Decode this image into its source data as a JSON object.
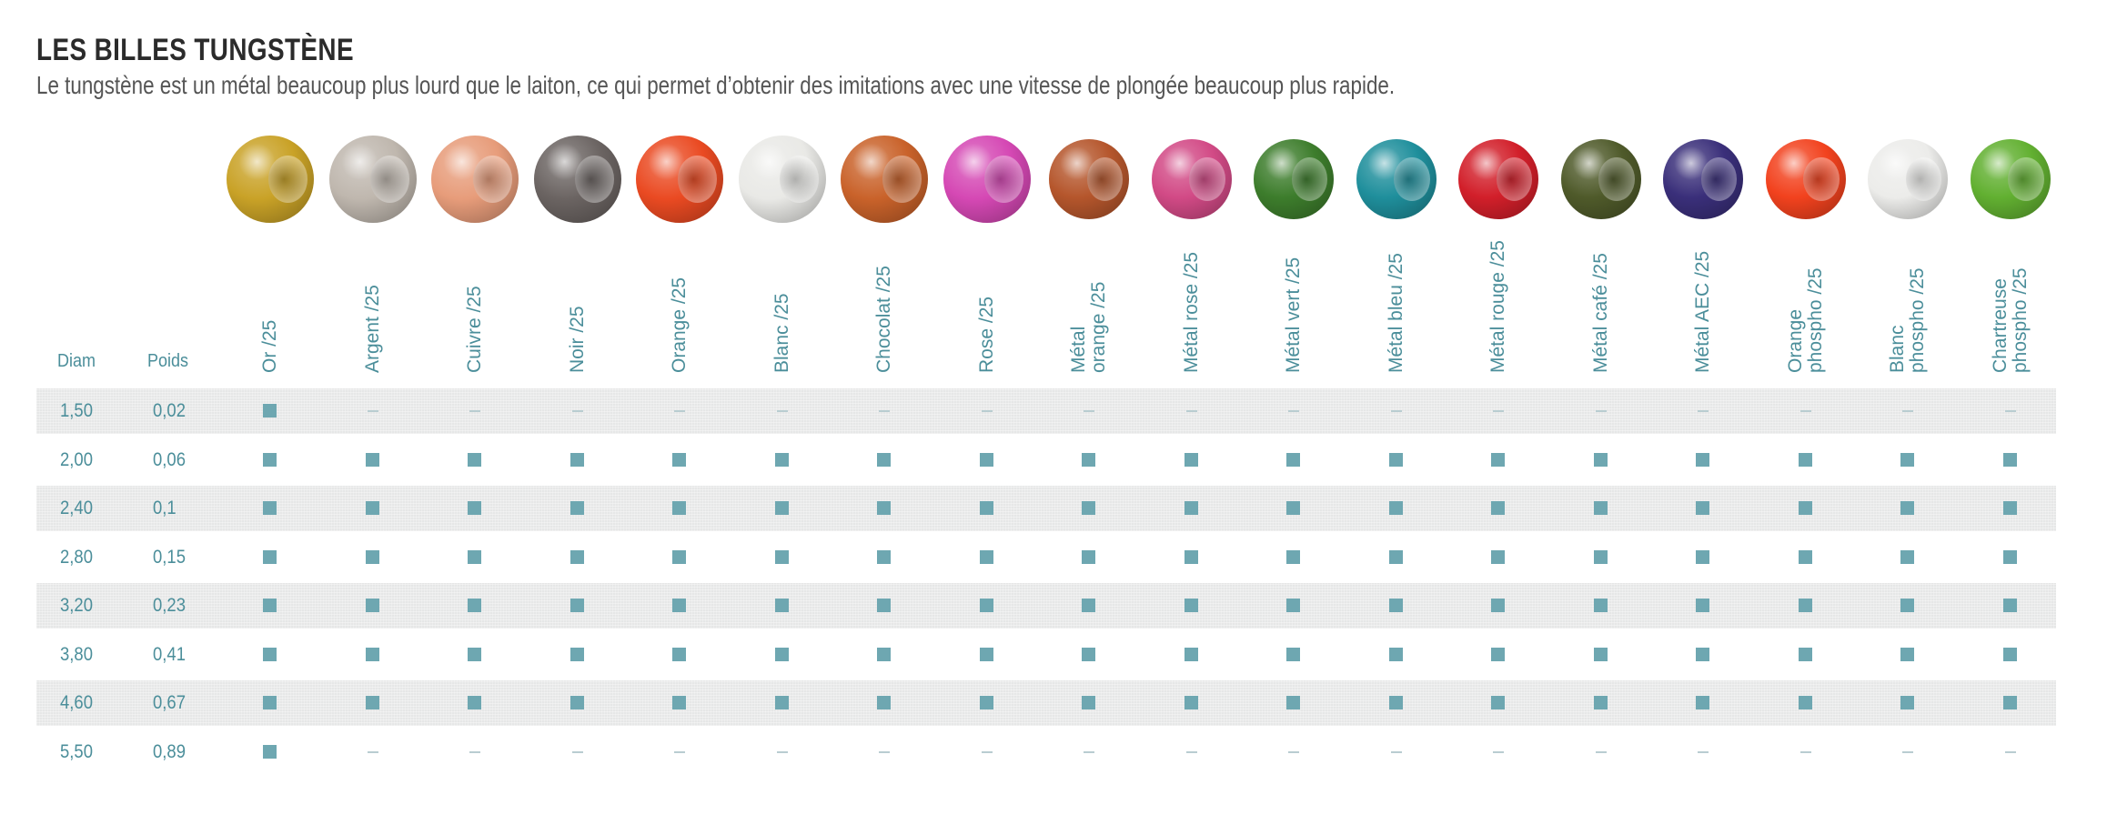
{
  "header": {
    "title": "LES BILLES TUNGSTÈNE",
    "subtitle": "Le tungstène est un métal beaucoup plus lourd que le laiton, ce qui permet d’obtenir des imitations avec une vitesse de plongée beaucoup plus rapide."
  },
  "table": {
    "col_diam": "Diam",
    "col_poids": "Poids",
    "colors": [
      {
        "label": "Or /25",
        "swatch": "#c9a227"
      },
      {
        "label": "Argent /25",
        "swatch": "#bfb7ae"
      },
      {
        "label": "Cuivre /25",
        "swatch": "#e79c7a"
      },
      {
        "label": "Noir /25",
        "swatch": "#6b6462"
      },
      {
        "label": "Orange /25",
        "swatch": "#ea4a22"
      },
      {
        "label": "Blanc /25",
        "swatch": "#e9e9e6"
      },
      {
        "label": "Chocolat /25",
        "swatch": "#c9622a"
      },
      {
        "label": "Rose /25",
        "swatch": "#d548b4"
      },
      {
        "label": "Métal\norange /25",
        "swatch": "#b5562c"
      },
      {
        "label": "Métal rose /25",
        "swatch": "#d24a86"
      },
      {
        "label": "Métal vert /25",
        "swatch": "#3d7d2c"
      },
      {
        "label": "Métal bleu /25",
        "swatch": "#1f8f9c"
      },
      {
        "label": "Métal rouge /25",
        "swatch": "#d21f2a"
      },
      {
        "label": "Métal café /25",
        "swatch": "#4f5a2a"
      },
      {
        "label": "Métal AEC /25",
        "swatch": "#3a2f7a"
      },
      {
        "label": "Orange\nphospho /25",
        "swatch": "#f2421e"
      },
      {
        "label": "Blanc\nphospho /25",
        "swatch": "#ececea"
      },
      {
        "label": "Chartreuse\nphospho /25",
        "swatch": "#62b031"
      }
    ],
    "rows": [
      {
        "diam": "1,50",
        "poids": "0,02",
        "avail": [
          1,
          0,
          0,
          0,
          0,
          0,
          0,
          0,
          0,
          0,
          0,
          0,
          0,
          0,
          0,
          0,
          0,
          0
        ]
      },
      {
        "diam": "2,00",
        "poids": "0,06",
        "avail": [
          1,
          1,
          1,
          1,
          1,
          1,
          1,
          1,
          1,
          1,
          1,
          1,
          1,
          1,
          1,
          1,
          1,
          1
        ]
      },
      {
        "diam": "2,40",
        "poids": "0,1",
        "avail": [
          1,
          1,
          1,
          1,
          1,
          1,
          1,
          1,
          1,
          1,
          1,
          1,
          1,
          1,
          1,
          1,
          1,
          1
        ]
      },
      {
        "diam": "2,80",
        "poids": "0,15",
        "avail": [
          1,
          1,
          1,
          1,
          1,
          1,
          1,
          1,
          1,
          1,
          1,
          1,
          1,
          1,
          1,
          1,
          1,
          1
        ]
      },
      {
        "diam": "3,20",
        "poids": "0,23",
        "avail": [
          1,
          1,
          1,
          1,
          1,
          1,
          1,
          1,
          1,
          1,
          1,
          1,
          1,
          1,
          1,
          1,
          1,
          1
        ]
      },
      {
        "diam": "3,80",
        "poids": "0,41",
        "avail": [
          1,
          1,
          1,
          1,
          1,
          1,
          1,
          1,
          1,
          1,
          1,
          1,
          1,
          1,
          1,
          1,
          1,
          1
        ]
      },
      {
        "diam": "4,60",
        "poids": "0,67",
        "avail": [
          1,
          1,
          1,
          1,
          1,
          1,
          1,
          1,
          1,
          1,
          1,
          1,
          1,
          1,
          1,
          1,
          1,
          1
        ]
      },
      {
        "diam": "5,50",
        "poids": "0,89",
        "avail": [
          1,
          0,
          0,
          0,
          0,
          0,
          0,
          0,
          0,
          0,
          0,
          0,
          0,
          0,
          0,
          0,
          0,
          0
        ]
      }
    ]
  }
}
